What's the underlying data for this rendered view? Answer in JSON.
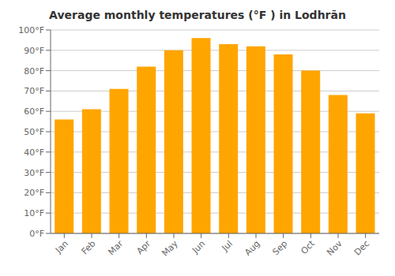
{
  "chart_data": {
    "type": "bar",
    "title": "Average monthly temperatures (°F ) in Lodhrān",
    "categories": [
      "Jan",
      "Feb",
      "Mar",
      "Apr",
      "May",
      "Jun",
      "Jul",
      "Aug",
      "Sep",
      "Oct",
      "Nov",
      "Dec"
    ],
    "values": [
      56,
      61,
      71,
      82,
      90,
      96,
      93,
      92,
      88,
      80,
      68,
      59
    ],
    "color": "#FFA500",
    "ylim": [
      0,
      100
    ],
    "yticks": [
      {
        "value": 0,
        "label": "0°F"
      },
      {
        "value": 10,
        "label": "10°F"
      },
      {
        "value": 20,
        "label": "20°F"
      },
      {
        "value": 30,
        "label": "30°F"
      },
      {
        "value": 40,
        "label": "40°F"
      },
      {
        "value": 50,
        "label": "50°F"
      },
      {
        "value": 60,
        "label": "60°F"
      },
      {
        "value": 70,
        "label": "70°F"
      },
      {
        "value": 80,
        "label": "80°F"
      },
      {
        "value": 90,
        "label": "90°F"
      },
      {
        "value": 100,
        "label": "100°F"
      }
    ],
    "grid": true
  }
}
